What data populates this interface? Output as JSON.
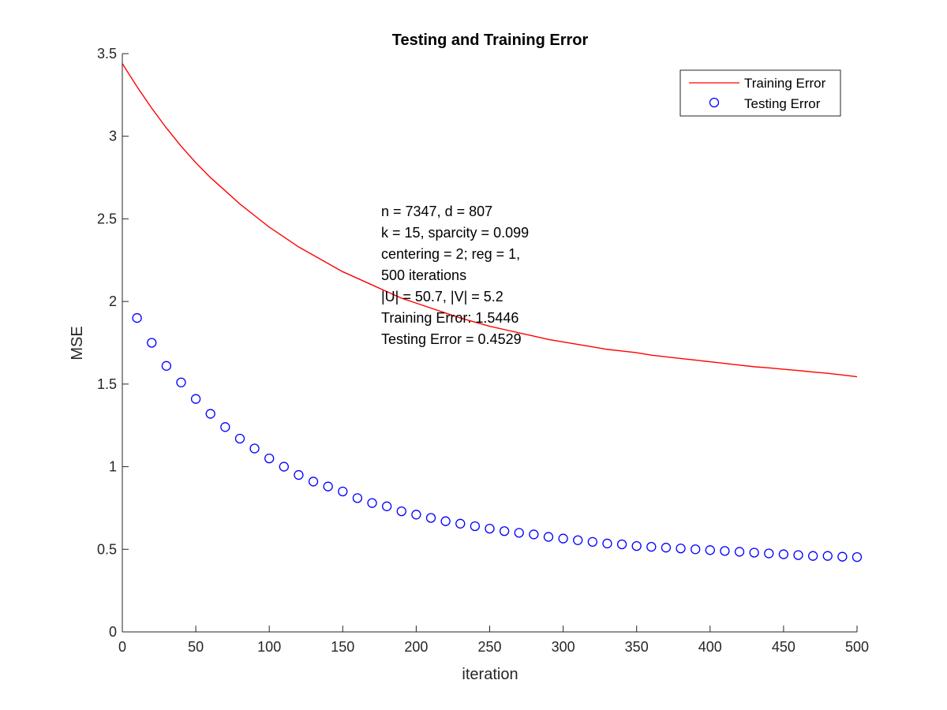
{
  "chart_data": {
    "type": "line",
    "title": "Testing and Training Error",
    "xlabel": "iteration",
    "ylabel": "MSE",
    "xlim": [
      0,
      500
    ],
    "ylim": [
      0,
      3.5
    ],
    "xticks": [
      0,
      50,
      100,
      150,
      200,
      250,
      300,
      350,
      400,
      450,
      500
    ],
    "xtick_labels": [
      "0",
      "50",
      "100",
      "150",
      "200",
      "250",
      "300",
      "350",
      "400",
      "450",
      "500"
    ],
    "yticks": [
      0,
      0.5,
      1,
      1.5,
      2,
      2.5,
      3,
      3.5
    ],
    "ytick_labels": [
      "0",
      "0.5",
      "1",
      "1.5",
      "2",
      "2.5",
      "3",
      "3.5"
    ],
    "grid": false,
    "legend_position": "top-right",
    "series": [
      {
        "name": "Training Error",
        "style": "line",
        "color": "#ff0000",
        "x": [
          0,
          10,
          20,
          30,
          40,
          50,
          60,
          70,
          80,
          90,
          100,
          110,
          120,
          130,
          140,
          150,
          160,
          170,
          180,
          190,
          200,
          210,
          220,
          230,
          240,
          250,
          260,
          270,
          280,
          290,
          300,
          310,
          320,
          330,
          340,
          350,
          360,
          370,
          380,
          390,
          400,
          410,
          420,
          430,
          440,
          450,
          460,
          470,
          480,
          490,
          500
        ],
        "values": [
          3.44,
          3.3,
          3.17,
          3.05,
          2.94,
          2.84,
          2.75,
          2.67,
          2.59,
          2.52,
          2.45,
          2.39,
          2.33,
          2.28,
          2.23,
          2.18,
          2.14,
          2.1,
          2.06,
          2.02,
          1.99,
          1.96,
          1.93,
          1.9,
          1.875,
          1.85,
          1.83,
          1.81,
          1.79,
          1.77,
          1.755,
          1.74,
          1.725,
          1.71,
          1.7,
          1.69,
          1.675,
          1.665,
          1.655,
          1.645,
          1.635,
          1.625,
          1.615,
          1.605,
          1.598,
          1.59,
          1.582,
          1.573,
          1.565,
          1.555,
          1.5446
        ]
      },
      {
        "name": "Testing Error",
        "style": "markers",
        "marker": "circle",
        "color": "#0000ff",
        "x": [
          10,
          20,
          30,
          40,
          50,
          60,
          70,
          80,
          90,
          100,
          110,
          120,
          130,
          140,
          150,
          160,
          170,
          180,
          190,
          200,
          210,
          220,
          230,
          240,
          250,
          260,
          270,
          280,
          290,
          300,
          310,
          320,
          330,
          340,
          350,
          360,
          370,
          380,
          390,
          400,
          410,
          420,
          430,
          440,
          450,
          460,
          470,
          480,
          490,
          500
        ],
        "values": [
          1.9,
          1.75,
          1.61,
          1.51,
          1.41,
          1.32,
          1.24,
          1.17,
          1.11,
          1.05,
          1.0,
          0.95,
          0.91,
          0.88,
          0.85,
          0.81,
          0.78,
          0.76,
          0.73,
          0.71,
          0.69,
          0.67,
          0.655,
          0.64,
          0.625,
          0.61,
          0.6,
          0.59,
          0.575,
          0.565,
          0.555,
          0.545,
          0.535,
          0.53,
          0.52,
          0.515,
          0.51,
          0.505,
          0.5,
          0.495,
          0.49,
          0.485,
          0.48,
          0.475,
          0.47,
          0.465,
          0.46,
          0.46,
          0.455,
          0.4529
        ]
      }
    ],
    "annotation": [
      "n = 7347, d = 807",
      "k = 15, sparcity = 0.099",
      "centering = 2; reg = 1,",
      "500 iterations",
      "|U| = 50.7, |V| = 5.2",
      "Training Error: 1.5446",
      "Testing Error = 0.4529"
    ]
  }
}
